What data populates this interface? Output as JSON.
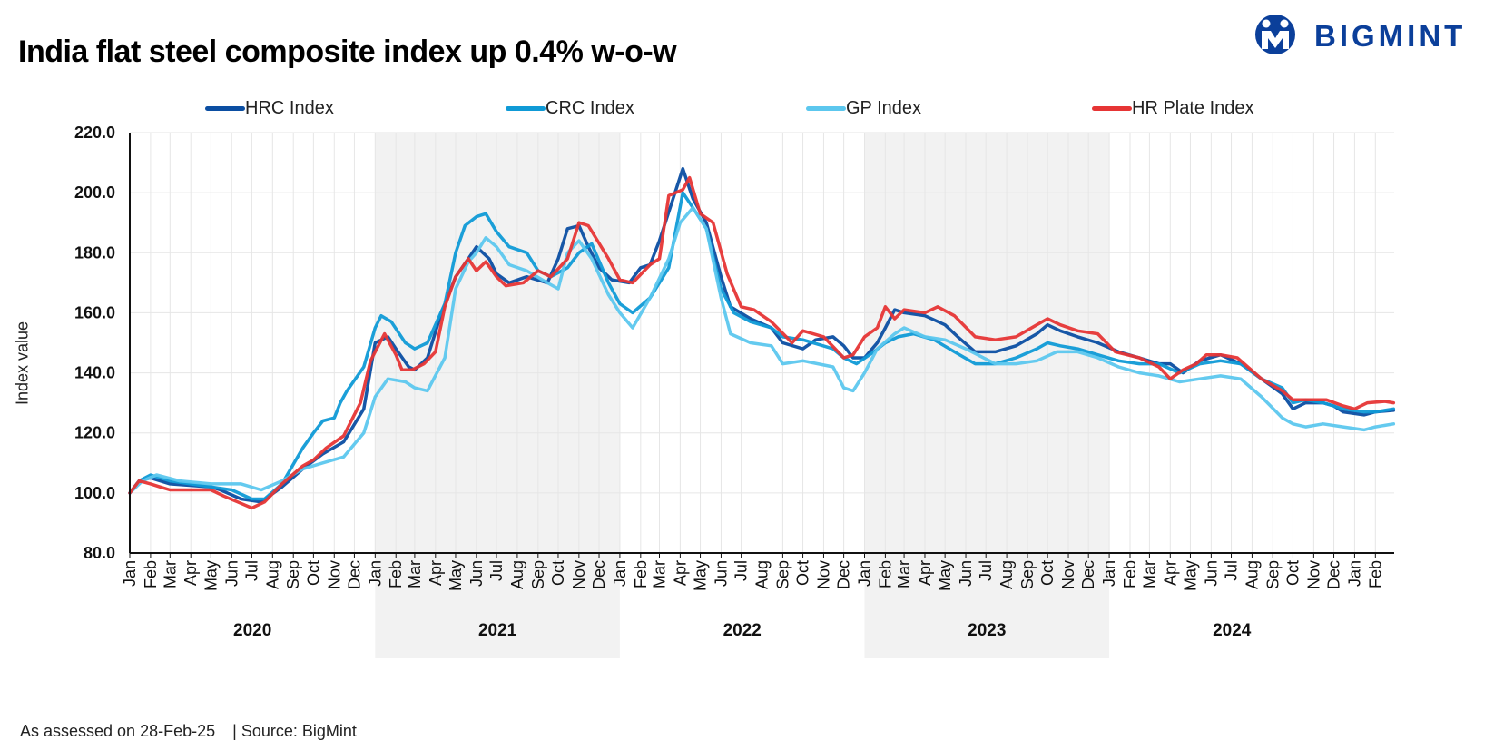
{
  "title": "India flat steel composite index up 0.4% w-o-w",
  "brand": {
    "name": "BIGMINT",
    "color": "#0b3f9a",
    "icon": "bigmint-logo-icon"
  },
  "footer": {
    "assessed": "As assessed on 28-Feb-25",
    "source": "| Source: BigMint"
  },
  "chart_data": {
    "type": "line",
    "ylabel": "Index value",
    "ylim": [
      80,
      220
    ],
    "yticks": [
      "220.0",
      "200.0",
      "180.0",
      "160.0",
      "140.0",
      "120.0",
      "100.0",
      "80.0"
    ],
    "grid": true,
    "legend_position": "top",
    "x_range": [
      "2020-01",
      "2025-03"
    ],
    "month_labels": [
      "Jan",
      "Feb",
      "Mar",
      "Apr",
      "May",
      "Jun",
      "Jul",
      "Aug",
      "Sep",
      "Oct",
      "Nov",
      "Dec",
      "Jan",
      "Feb",
      "Mar",
      "Apr",
      "May",
      "Jun",
      "Jul",
      "Aug",
      "Sep",
      "Oct",
      "Nov",
      "Dec",
      "Jan",
      "Feb",
      "Mar",
      "Apr",
      "May",
      "Jun",
      "Jul",
      "Aug",
      "Sep",
      "Oct",
      "Nov",
      "Dec",
      "Jan",
      "Feb",
      "Mar",
      "Apr",
      "May",
      "Jun",
      "Jul",
      "Aug",
      "Sep",
      "Oct",
      "Nov",
      "Dec",
      "Jan",
      "Feb",
      "Mar",
      "Apr",
      "May",
      "Jun",
      "Jul",
      "Aug",
      "Sep",
      "Oct",
      "Nov",
      "Dec",
      "Jan",
      "Feb"
    ],
    "year_labels": [
      "2020",
      "2021",
      "2022",
      "2023",
      "2024"
    ],
    "shaded_years": [
      "2021",
      "2023"
    ],
    "series": [
      {
        "name": "HRC Index",
        "color": "#0b4ea2",
        "x": [
          "2020-01-01",
          "2020-01-15",
          "2020-02-01",
          "2020-03-01",
          "2020-05-01",
          "2020-05-15",
          "2020-06-15",
          "2020-07-15",
          "2020-08-15",
          "2020-09-15",
          "2020-10-15",
          "2020-11-15",
          "2020-12-15",
          "2021-01-01",
          "2021-01-20",
          "2021-02-01",
          "2021-02-20",
          "2021-03-01",
          "2021-03-20",
          "2021-04-10",
          "2021-05-01",
          "2021-05-20",
          "2021-06-01",
          "2021-06-20",
          "2021-07-01",
          "2021-07-20",
          "2021-08-15",
          "2021-09-15",
          "2021-10-01",
          "2021-10-15",
          "2021-11-01",
          "2021-11-15",
          "2021-12-01",
          "2021-12-20",
          "2022-01-15",
          "2022-02-01",
          "2022-02-15",
          "2022-03-01",
          "2022-03-20",
          "2022-04-05",
          "2022-04-20",
          "2022-05-10",
          "2022-06-01",
          "2022-06-15",
          "2022-07-15",
          "2022-08-15",
          "2022-09-01",
          "2022-10-01",
          "2022-10-20",
          "2022-11-15",
          "2022-12-01",
          "2022-12-15",
          "2023-01-01",
          "2023-01-20",
          "2023-02-01",
          "2023-02-15",
          "2023-03-01",
          "2023-04-01",
          "2023-05-01",
          "2023-05-20",
          "2023-06-15",
          "2023-07-15",
          "2023-08-15",
          "2023-09-15",
          "2023-10-01",
          "2023-10-20",
          "2023-11-15",
          "2023-12-15",
          "2024-01-15",
          "2024-02-15",
          "2024-03-15",
          "2024-04-01",
          "2024-04-20",
          "2024-05-15",
          "2024-06-15",
          "2024-07-15",
          "2024-08-15",
          "2024-09-15",
          "2024-10-01",
          "2024-10-20",
          "2024-11-15",
          "2024-12-01",
          "2024-12-15",
          "2025-01-15",
          "2025-02-01",
          "2025-02-28"
        ],
        "y": [
          100,
          104,
          105,
          103,
          102,
          101,
          98,
          97,
          102,
          108,
          113,
          117,
          128,
          150,
          152,
          148,
          142,
          141,
          145,
          160,
          172,
          178,
          182,
          178,
          173,
          170,
          172,
          170,
          178,
          188,
          189,
          182,
          175,
          171,
          170,
          175,
          176,
          184,
          197,
          208,
          198,
          190,
          172,
          162,
          158,
          155,
          150,
          148,
          151,
          152,
          149,
          145,
          145,
          150,
          155,
          161,
          160,
          159,
          156,
          152,
          147,
          147,
          149,
          153,
          156,
          154,
          152,
          150,
          147,
          145,
          143,
          143,
          140,
          144,
          146,
          143,
          138,
          133,
          128,
          130,
          130,
          129,
          127,
          126,
          127,
          127.5
        ]
      },
      {
        "name": "CRC Index",
        "color": "#0f9ad6",
        "x": [
          "2020-01-01",
          "2020-01-15",
          "2020-02-01",
          "2020-03-01",
          "2020-05-01",
          "2020-06-01",
          "2020-07-01",
          "2020-07-20",
          "2020-08-15",
          "2020-09-15",
          "2020-10-01",
          "2020-10-15",
          "2020-11-01",
          "2020-11-10",
          "2020-11-20",
          "2020-12-15",
          "2021-01-01",
          "2021-01-10",
          "2021-01-25",
          "2021-02-15",
          "2021-03-01",
          "2021-03-20",
          "2021-04-15",
          "2021-05-01",
          "2021-05-15",
          "2021-06-01",
          "2021-06-15",
          "2021-07-01",
          "2021-07-20",
          "2021-08-15",
          "2021-09-01",
          "2021-09-20",
          "2021-10-15",
          "2021-11-01",
          "2021-11-20",
          "2021-12-15",
          "2022-01-01",
          "2022-01-20",
          "2022-02-15",
          "2022-03-15",
          "2022-04-05",
          "2022-04-20",
          "2022-05-10",
          "2022-06-01",
          "2022-06-20",
          "2022-07-15",
          "2022-08-15",
          "2022-09-01",
          "2022-10-01",
          "2022-11-15",
          "2022-12-01",
          "2022-12-20",
          "2023-01-15",
          "2023-02-01",
          "2023-02-20",
          "2023-03-15",
          "2023-04-15",
          "2023-05-15",
          "2023-06-15",
          "2023-07-15",
          "2023-08-15",
          "2023-09-15",
          "2023-10-01",
          "2023-10-20",
          "2023-11-15",
          "2023-12-15",
          "2024-01-15",
          "2024-02-15",
          "2024-03-15",
          "2024-04-15",
          "2024-05-15",
          "2024-06-15",
          "2024-07-15",
          "2024-08-15",
          "2024-09-15",
          "2024-10-01",
          "2024-10-20",
          "2024-11-15",
          "2024-12-15",
          "2025-01-15",
          "2025-02-01",
          "2025-02-28"
        ],
        "y": [
          100,
          104,
          106,
          104,
          102,
          101,
          98,
          98,
          103,
          115,
          120,
          124,
          125,
          130,
          134,
          142,
          155,
          159,
          157,
          150,
          148,
          150,
          163,
          180,
          189,
          192,
          193,
          187,
          182,
          180,
          174,
          172,
          175,
          180,
          183,
          170,
          163,
          160,
          165,
          175,
          200,
          195,
          188,
          168,
          160,
          157,
          155,
          152,
          151,
          148,
          145,
          143,
          147,
          150,
          152,
          153,
          151,
          147,
          143,
          143,
          145,
          148,
          150,
          149,
          148,
          146,
          144,
          143,
          143,
          140,
          143,
          144,
          143,
          138,
          135,
          130,
          131,
          130,
          128,
          127,
          127,
          128
        ]
      },
      {
        "name": "GP Index",
        "color": "#5cc7ee",
        "x": [
          "2020-01-01",
          "2020-01-20",
          "2020-02-10",
          "2020-03-15",
          "2020-05-01",
          "2020-06-01",
          "2020-06-15",
          "2020-07-15",
          "2020-08-15",
          "2020-09-15",
          "2020-10-15",
          "2020-11-15",
          "2020-12-15",
          "2021-01-01",
          "2021-01-20",
          "2021-02-15",
          "2021-03-01",
          "2021-03-20",
          "2021-04-15",
          "2021-05-01",
          "2021-05-20",
          "2021-06-01",
          "2021-06-15",
          "2021-07-01",
          "2021-07-20",
          "2021-08-15",
          "2021-09-15",
          "2021-10-01",
          "2021-10-15",
          "2021-11-01",
          "2021-11-20",
          "2021-12-15",
          "2022-01-01",
          "2022-01-20",
          "2022-02-15",
          "2022-03-15",
          "2022-04-01",
          "2022-04-20",
          "2022-05-10",
          "2022-06-01",
          "2022-06-15",
          "2022-07-15",
          "2022-08-15",
          "2022-09-01",
          "2022-10-01",
          "2022-11-15",
          "2022-12-01",
          "2022-12-15",
          "2023-01-01",
          "2023-01-20",
          "2023-02-15",
          "2023-03-01",
          "2023-04-01",
          "2023-05-01",
          "2023-06-01",
          "2023-07-15",
          "2023-08-15",
          "2023-09-15",
          "2023-10-15",
          "2023-11-15",
          "2023-12-15",
          "2024-01-15",
          "2024-02-15",
          "2024-03-15",
          "2024-04-15",
          "2024-05-15",
          "2024-06-15",
          "2024-07-15",
          "2024-08-15",
          "2024-09-15",
          "2024-10-01",
          "2024-10-20",
          "2024-11-15",
          "2024-12-15",
          "2025-01-15",
          "2025-02-01",
          "2025-02-28"
        ],
        "y": [
          100,
          104,
          106,
          104,
          103,
          103,
          103,
          101,
          104,
          108,
          110,
          112,
          120,
          132,
          138,
          137,
          135,
          134,
          145,
          168,
          177,
          180,
          185,
          182,
          176,
          174,
          170,
          168,
          180,
          184,
          178,
          166,
          160,
          155,
          165,
          178,
          190,
          195,
          188,
          165,
          153,
          150,
          149,
          143,
          144,
          142,
          135,
          134,
          140,
          148,
          153,
          155,
          152,
          151,
          148,
          143,
          143,
          144,
          147,
          147,
          145,
          142,
          140,
          139,
          137,
          138,
          139,
          138,
          132,
          125,
          123,
          122,
          123,
          122,
          121,
          122,
          123
        ]
      },
      {
        "name": "HR Plate Index",
        "color": "#e63535",
        "x": [
          "2020-01-01",
          "2020-01-15",
          "2020-02-01",
          "2020-02-15",
          "2020-03-01",
          "2020-05-01",
          "2020-05-20",
          "2020-06-10",
          "2020-07-01",
          "2020-07-20",
          "2020-08-15",
          "2020-09-15",
          "2020-10-01",
          "2020-10-20",
          "2020-11-15",
          "2020-12-10",
          "2020-12-25",
          "2021-01-15",
          "2021-02-01",
          "2021-02-10",
          "2021-02-25",
          "2021-03-15",
          "2021-04-01",
          "2021-04-15",
          "2021-05-01",
          "2021-05-20",
          "2021-06-01",
          "2021-06-15",
          "2021-07-01",
          "2021-07-15",
          "2021-08-10",
          "2021-09-01",
          "2021-09-20",
          "2021-10-15",
          "2021-11-01",
          "2021-11-15",
          "2021-12-15",
          "2022-01-01",
          "2022-01-20",
          "2022-02-15",
          "2022-03-01",
          "2022-03-15",
          "2022-04-05",
          "2022-04-15",
          "2022-05-01",
          "2022-05-20",
          "2022-06-10",
          "2022-07-01",
          "2022-07-20",
          "2022-08-15",
          "2022-09-15",
          "2022-10-01",
          "2022-11-01",
          "2022-12-01",
          "2022-12-15",
          "2023-01-01",
          "2023-01-20",
          "2023-02-01",
          "2023-02-15",
          "2023-03-01",
          "2023-04-01",
          "2023-04-20",
          "2023-05-15",
          "2023-06-15",
          "2023-07-15",
          "2023-08-15",
          "2023-09-15",
          "2023-10-01",
          "2023-10-20",
          "2023-11-15",
          "2023-12-15",
          "2024-01-10",
          "2024-02-15",
          "2024-03-15",
          "2024-04-01",
          "2024-04-20",
          "2024-05-10",
          "2024-05-25",
          "2024-06-15",
          "2024-07-10",
          "2024-08-15",
          "2024-09-15",
          "2024-10-01",
          "2024-11-01",
          "2024-11-20",
          "2024-12-15",
          "2025-01-01",
          "2025-01-20",
          "2025-02-15",
          "2025-02-28"
        ],
        "y": [
          100,
          104,
          103,
          102,
          101,
          101,
          99,
          97,
          95,
          97,
          103,
          109,
          111,
          115,
          119,
          130,
          144,
          153,
          146,
          141,
          141,
          143,
          147,
          162,
          172,
          178,
          174,
          177,
          172,
          169,
          170,
          174,
          172,
          178,
          190,
          189,
          178,
          171,
          170,
          176,
          178,
          199,
          201,
          205,
          193,
          190,
          173,
          162,
          161,
          157,
          150,
          154,
          152,
          145,
          146,
          152,
          155,
          162,
          158,
          161,
          160,
          162,
          159,
          152,
          151,
          152,
          156,
          158,
          156,
          154,
          153,
          147,
          145,
          142,
          138,
          141,
          143,
          146,
          146,
          145,
          138,
          134,
          131,
          131,
          131,
          129,
          128,
          130,
          130.5,
          130
        ]
      }
    ]
  }
}
